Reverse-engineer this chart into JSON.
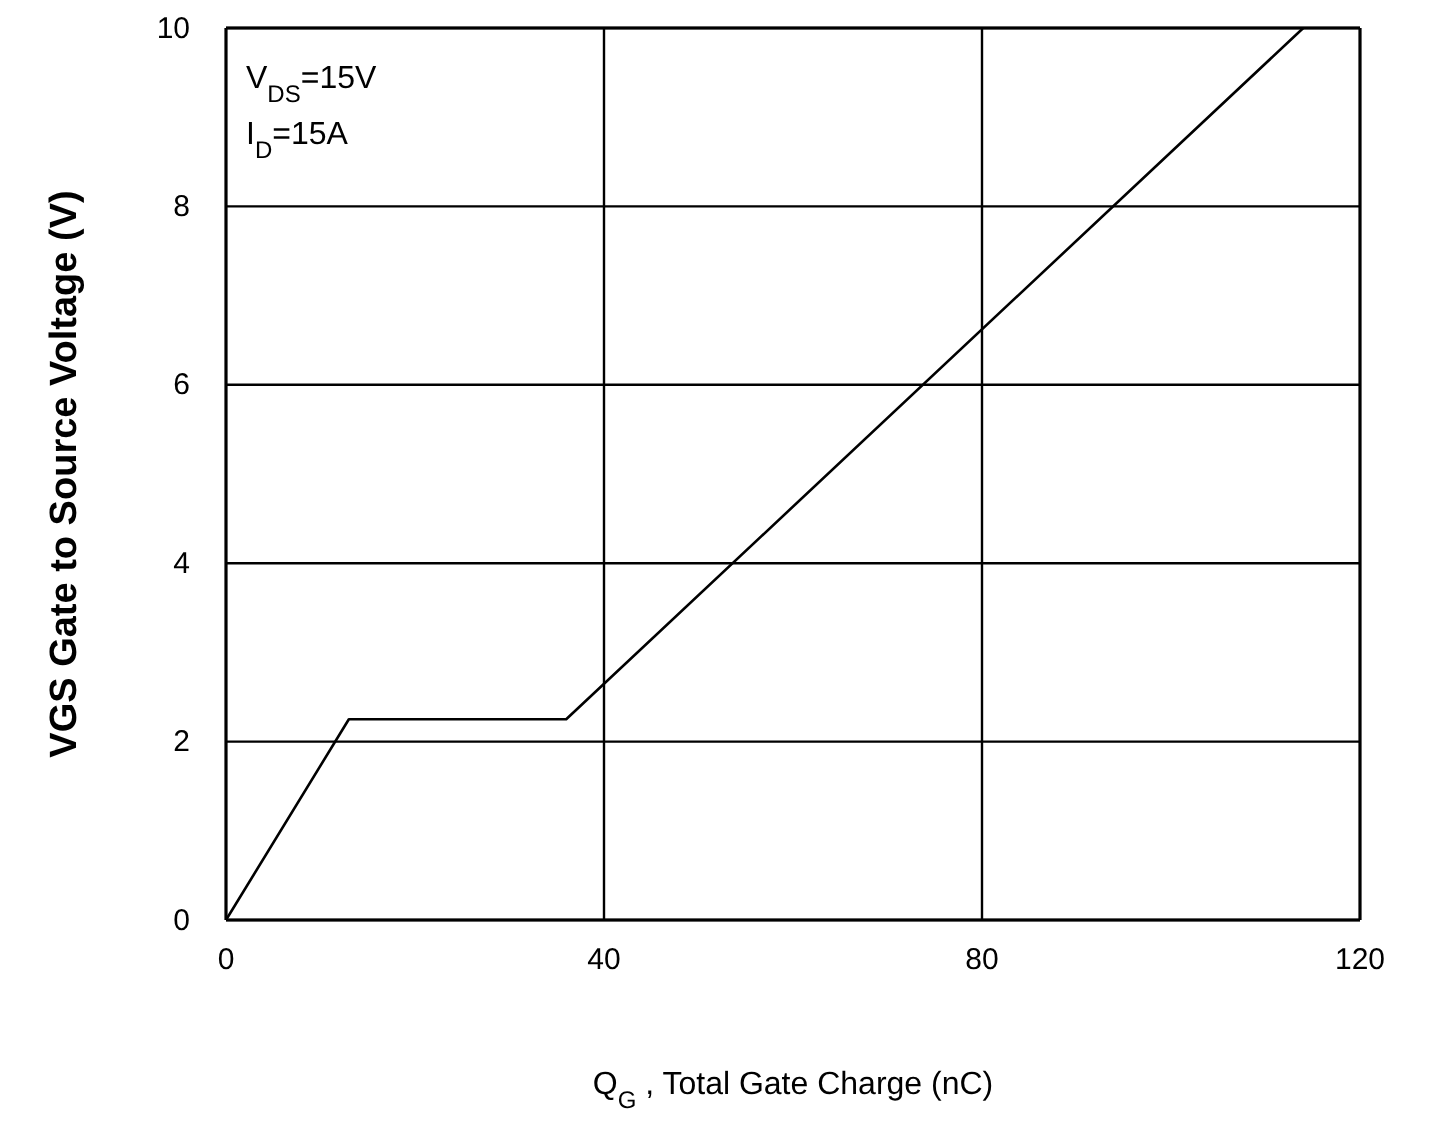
{
  "chart_data": {
    "type": "line",
    "xlabel": "Q$_{G}$ , Total Gate Charge (nC)",
    "ylabel": "VGS Gate to Source Voltage (V)",
    "x": [
      0,
      13,
      36,
      114
    ],
    "series": [
      {
        "color": "#000000",
        "values": [
          0,
          2.25,
          2.25,
          10
        ]
      }
    ],
    "xlim": [
      0,
      120
    ],
    "ylim": [
      0,
      10
    ],
    "xticks": [
      0,
      40,
      80,
      120
    ],
    "yticks": [
      0,
      2,
      4,
      6,
      8,
      10
    ],
    "grid": true,
    "marker": "none",
    "line_style": "solid",
    "annotations": [
      "V$_{DS}$=15V",
      "I$_{D}$=15A"
    ]
  }
}
